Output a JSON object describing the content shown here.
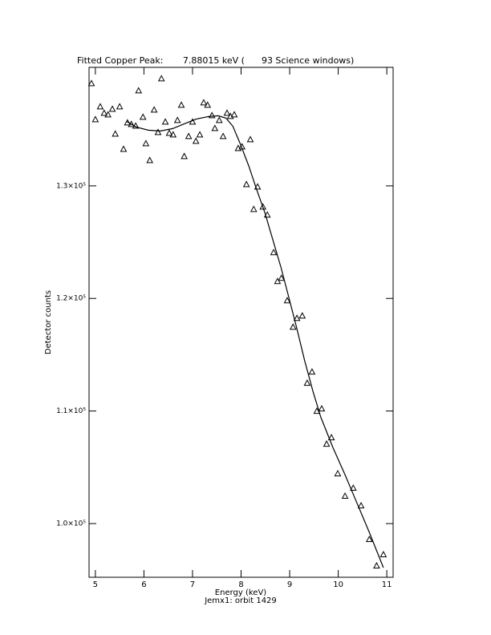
{
  "chart_data": {
    "type": "scatter",
    "title": "Fitted Copper Peak:       7.88015 keV (      93 Science windows)",
    "x_label": "Energy (keV)",
    "subtitle": "Jemx1: orbit 1429",
    "y_label": "Detector counts",
    "xlim": [
      4.87,
      11.13
    ],
    "ylim": [
      95230,
      140530
    ],
    "xticks": [
      5,
      6,
      7,
      8,
      9,
      10,
      11
    ],
    "yticks": [
      {
        "value": 100000,
        "label": "1.0×10⁵"
      },
      {
        "value": 110000,
        "label": "1.1×10⁵"
      },
      {
        "value": 120000,
        "label": "1.2×10⁵"
      },
      {
        "value": 130000,
        "label": "1.3×10⁵"
      }
    ],
    "series": [
      {
        "type": "scatter",
        "marker": "triangle",
        "color": "#000000",
        "x": [
          4.92,
          5.0,
          5.1,
          5.18,
          5.26,
          5.35,
          5.41,
          5.5,
          5.58,
          5.66,
          5.74,
          5.83,
          5.89,
          5.98,
          6.04,
          6.12,
          6.21,
          6.29,
          6.36,
          6.44,
          6.52,
          6.6,
          6.69,
          6.77,
          6.83,
          6.92,
          7.0,
          7.07,
          7.15,
          7.23,
          7.31,
          7.4,
          7.46,
          7.55,
          7.63,
          7.71,
          7.78,
          7.86,
          7.94,
          8.02,
          8.11,
          8.19,
          8.26,
          8.34,
          8.45,
          8.54,
          8.67,
          8.75,
          8.83,
          8.95,
          9.07,
          9.15,
          9.26,
          9.36,
          9.46,
          9.56,
          9.66,
          9.76,
          9.86,
          9.99,
          10.14,
          10.31,
          10.47,
          10.64,
          10.79,
          10.93
        ],
        "values": [
          139075,
          135872,
          137010,
          136441,
          136299,
          136797,
          134591,
          137010,
          133238,
          135587,
          135445,
          135302,
          138434,
          136085,
          133737,
          132242,
          136726,
          134733,
          139502,
          135658,
          134662,
          134520,
          135801,
          137153,
          132598,
          134377,
          135658,
          133950,
          134520,
          137367,
          137153,
          136228,
          135089,
          135801,
          134377,
          136441,
          136157,
          136299,
          133310,
          133452,
          130107,
          134093,
          127900,
          129893,
          128114,
          127402,
          124057,
          121495,
          121779,
          119786,
          117438,
          118221,
          118434,
          112456,
          113452,
          109964,
          110178,
          107046,
          107616,
          104413,
          102420,
          103132,
          101566,
          98577,
          96228,
          97224
        ]
      },
      {
        "type": "line",
        "color": "#000000",
        "x": [
          5.64,
          5.84,
          6.09,
          6.34,
          6.59,
          6.83,
          7.08,
          7.33,
          7.53,
          7.69,
          7.83,
          7.99,
          8.16,
          8.32,
          8.49,
          8.65,
          8.82,
          8.98,
          9.15,
          9.31,
          9.48,
          9.64,
          9.89,
          10.14,
          10.39,
          10.64,
          10.93
        ],
        "values": [
          135730,
          135231,
          134947,
          134875,
          135089,
          135516,
          135943,
          136157,
          136228,
          136014,
          135302,
          133665,
          131744,
          129680,
          127616,
          125267,
          122776,
          120142,
          117295,
          114448,
          111744,
          109466,
          106762,
          104342,
          101779,
          99217,
          96085
        ]
      }
    ]
  }
}
